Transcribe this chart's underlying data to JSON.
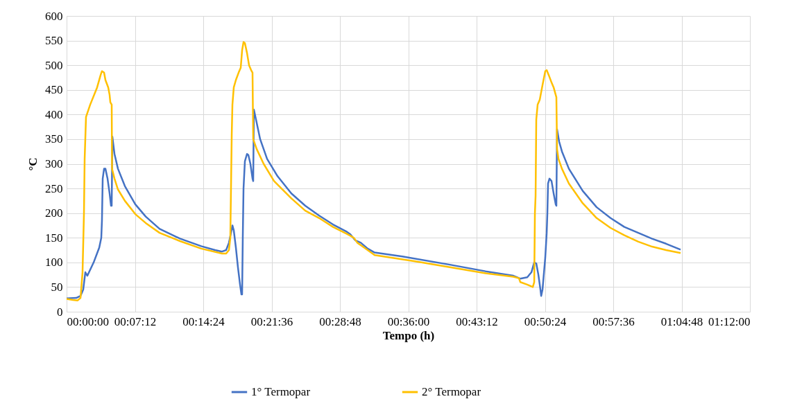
{
  "chart_data": {
    "type": "line",
    "xlabel": "Tempo (h)",
    "ylabel": "°C",
    "xlim": [
      0,
      1.2
    ],
    "ylim": [
      0,
      600
    ],
    "xticks": [
      {
        "value": 0,
        "label": "00:00:00"
      },
      {
        "value": 0.12,
        "label": "00:07:12"
      },
      {
        "value": 0.24,
        "label": "00:14:24"
      },
      {
        "value": 0.36,
        "label": "00:21:36"
      },
      {
        "value": 0.48,
        "label": "00:28:48"
      },
      {
        "value": 0.6,
        "label": "00:36:00"
      },
      {
        "value": 0.72,
        "label": "00:43:12"
      },
      {
        "value": 0.84,
        "label": "00:50:24"
      },
      {
        "value": 0.96,
        "label": "00:57:36"
      },
      {
        "value": 1.08,
        "label": "01:04:48"
      },
      {
        "value": 1.2,
        "label": "01:12:00"
      }
    ],
    "yticks": [
      0,
      50,
      100,
      150,
      200,
      250,
      300,
      350,
      400,
      450,
      500,
      550,
      600
    ],
    "grid": true,
    "legend": "bottom",
    "marker": "none",
    "line_style": "solid",
    "series": [
      {
        "name": "1° Termopar",
        "color": "#4472c4",
        "x": [
          0,
          0.0171,
          0.0244,
          0.0292,
          0.0329,
          0.0365,
          0.0475,
          0.0573,
          0.0609,
          0.0621,
          0.0634,
          0.0658,
          0.0682,
          0.0719,
          0.0755,
          0.078,
          0.0792,
          0.0804,
          0.0841,
          0.0902,
          0.1023,
          0.1206,
          0.1389,
          0.1633,
          0.1998,
          0.2364,
          0.2607,
          0.2729,
          0.2802,
          0.2851,
          0.2887,
          0.2912,
          0.2936,
          0.2973,
          0.3009,
          0.3046,
          0.307,
          0.3082,
          0.3094,
          0.3107,
          0.3131,
          0.3168,
          0.3192,
          0.3228,
          0.3265,
          0.3277,
          0.3289,
          0.3326,
          0.3399,
          0.3521,
          0.3704,
          0.3947,
          0.4191,
          0.4435,
          0.4678,
          0.4922,
          0.4983,
          0.5068,
          0.5166,
          0.5287,
          0.5409,
          0.5897,
          0.6749,
          0.7358,
          0.7846,
          0.7907,
          0.7968,
          0.809,
          0.8163,
          0.8212,
          0.8248,
          0.8285,
          0.8321,
          0.8334,
          0.8358,
          0.8406,
          0.8431,
          0.8443,
          0.8455,
          0.848,
          0.8516,
          0.8553,
          0.8589,
          0.8601,
          0.8613,
          0.865,
          0.8699,
          0.8821,
          0.9064,
          0.9308,
          0.9552,
          0.9795,
          1.0039,
          1.0282,
          1.0526,
          1.0782
        ],
        "values": [
          27,
          28,
          32,
          45,
          80,
          73,
          100,
          130,
          150,
          185,
          270,
          290,
          290,
          270,
          240,
          215,
          215,
          355,
          320,
          290,
          255,
          218,
          193,
          168,
          148,
          133,
          125,
          122,
          125,
          140,
          160,
          175,
          165,
          130,
          90,
          55,
          35,
          35,
          150,
          250,
          305,
          320,
          318,
          300,
          270,
          265,
          410,
          390,
          350,
          310,
          275,
          240,
          215,
          195,
          177,
          162,
          157,
          145,
          140,
          128,
          120,
          112,
          95,
          82,
          73,
          70,
          67,
          70,
          80,
          100,
          98,
          75,
          45,
          32,
          45,
          110,
          160,
          200,
          260,
          270,
          265,
          240,
          218,
          215,
          370,
          345,
          325,
          290,
          245,
          212,
          190,
          172,
          160,
          148,
          138,
          126
        ]
      },
      {
        "name": "2° Termopar",
        "color": "#ffc000",
        "x": [
          0,
          0.011,
          0.0195,
          0.0244,
          0.028,
          0.0305,
          0.0317,
          0.0341,
          0.0414,
          0.0536,
          0.0597,
          0.0621,
          0.0658,
          0.0682,
          0.0731,
          0.0755,
          0.0768,
          0.0792,
          0.0798,
          0.0841,
          0.0902,
          0.1023,
          0.1206,
          0.1389,
          0.1633,
          0.1998,
          0.2364,
          0.2729,
          0.2802,
          0.2851,
          0.2875,
          0.2887,
          0.29,
          0.2912,
          0.2936,
          0.2973,
          0.3021,
          0.3058,
          0.3082,
          0.3107,
          0.3131,
          0.3168,
          0.3204,
          0.3241,
          0.3265,
          0.3277,
          0.3338,
          0.346,
          0.3643,
          0.3947,
          0.4191,
          0.4435,
          0.4678,
          0.4922,
          0.5044,
          0.5105,
          0.5227,
          0.5409,
          0.614,
          0.6749,
          0.7358,
          0.7846,
          0.7944,
          0.7968,
          0.809,
          0.8187,
          0.8212,
          0.8224,
          0.8236,
          0.8248,
          0.8272,
          0.8309,
          0.8358,
          0.8406,
          0.8431,
          0.8467,
          0.8516,
          0.8553,
          0.8589,
          0.8601,
          0.8613,
          0.8638,
          0.8699,
          0.8821,
          0.9064,
          0.9308,
          0.9552,
          0.9795,
          1.0039,
          1.0282,
          1.0526,
          1.0782
        ],
        "values": [
          26,
          24,
          23,
          28,
          80,
          200,
          310,
          395,
          420,
          455,
          480,
          488,
          485,
          470,
          455,
          440,
          425,
          420,
          290,
          270,
          248,
          225,
          198,
          180,
          160,
          143,
          128,
          118,
          118,
          125,
          150,
          250,
          360,
          420,
          455,
          470,
          485,
          495,
          530,
          547,
          545,
          525,
          500,
          490,
          485,
          350,
          330,
          300,
          265,
          230,
          205,
          190,
          172,
          158,
          150,
          140,
          130,
          115,
          102,
          90,
          78,
          71,
          68,
          60,
          55,
          50,
          60,
          200,
          235,
          390,
          420,
          430,
          460,
          488,
          490,
          480,
          465,
          455,
          440,
          435,
          330,
          310,
          290,
          260,
          220,
          190,
          170,
          155,
          142,
          132,
          125,
          119
        ]
      }
    ]
  }
}
